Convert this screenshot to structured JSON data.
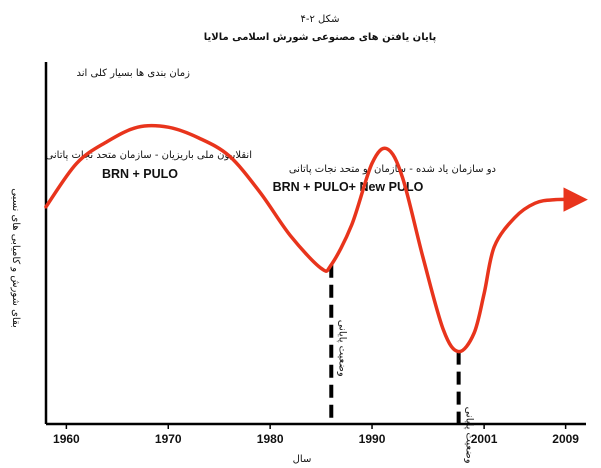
{
  "chart_data": {
    "type": "line",
    "figure_label": "شکل ۲-۴",
    "title": "پایان یافتن های مصنوعی شورش اسلامی مالایا",
    "xlabel": "سال",
    "ylabel": "بقای شورش و کامیابی های نسبی",
    "x_ticks": [
      1960,
      1970,
      1980,
      1990,
      2001,
      2009
    ],
    "xlim": [
      1958,
      2011
    ],
    "y_ticks_shown": false,
    "grid": false,
    "series": [
      {
        "color": "#e8341c",
        "x": [
          1958,
          1961,
          1964,
          1967,
          1970,
          1973,
          1976,
          1979,
          1982,
          1985,
          1986,
          1988,
          1990,
          1991.5,
          1993,
          1995,
          1997,
          1998.5,
          2000,
          2001,
          2002,
          2004,
          2006,
          2008,
          2010.5
        ],
        "y": [
          0.6,
          0.72,
          0.78,
          0.82,
          0.82,
          0.79,
          0.74,
          0.64,
          0.52,
          0.43,
          0.44,
          0.55,
          0.72,
          0.76,
          0.68,
          0.46,
          0.26,
          0.2,
          0.25,
          0.36,
          0.49,
          0.57,
          0.61,
          0.62,
          0.62
        ]
      }
    ],
    "markers": [
      {
        "x": 1986,
        "label": "وضعیت پایانی"
      },
      {
        "x": 1998.5,
        "label": "وضعیت پایانی"
      }
    ],
    "annotations": [
      {
        "text": "زمان بندی ها بسیار کلی اند"
      },
      {
        "text": "انقلابیون ملی باریزیان - سازمان متحد نجات پاتانی"
      },
      {
        "text": "BRN + PULO"
      },
      {
        "text": "دو سازمان یاد  شده - سازمان نو متحد نجات پاتانی"
      },
      {
        "text": "BRN + PULO+ New PULO"
      }
    ]
  }
}
